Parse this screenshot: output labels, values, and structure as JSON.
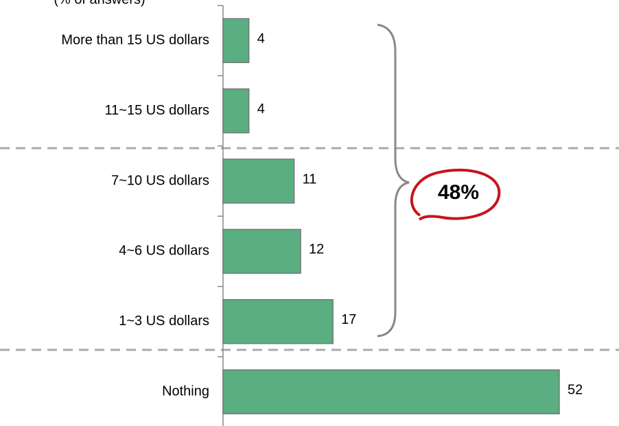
{
  "chart_data": {
    "type": "bar",
    "orientation": "horizontal",
    "title": "(% of answers)",
    "categories": [
      "More than 15 US dollars",
      "11~15 US dollars",
      "7~10 US dollars",
      "4~6 US dollars",
      "1~3 US dollars",
      "Nothing"
    ],
    "values": [
      4,
      4,
      11,
      12,
      17,
      52
    ],
    "color": "#5aae82",
    "annotation": "48%"
  }
}
